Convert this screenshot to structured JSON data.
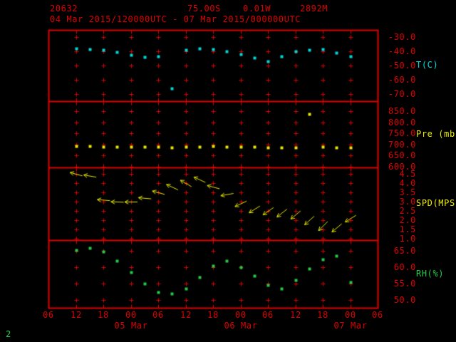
{
  "header": {
    "station_id": "20632",
    "latitude": "75.00S",
    "longitude": "0.01W",
    "elevation": "2892M",
    "time_range": "04 Mar 2015/120000UTC - 07 Mar 2015/000000UTC"
  },
  "footer": {
    "page_number": "2"
  },
  "colors": {
    "frame": "#dd0000",
    "axis_text": "#dd0000",
    "temperature": "#00d8d8",
    "pressure": "#e8e800",
    "wind": "#e8e800",
    "humidity": "#22cc44"
  },
  "chart_data": {
    "type": "meteogram",
    "title": "Station time-series meteogram",
    "time_axis": {
      "hour_labels": [
        "06",
        "12",
        "18",
        "00",
        "06",
        "12",
        "18",
        "00",
        "06",
        "12",
        "18",
        "00",
        "06"
      ],
      "tick_interval_hours": 6,
      "date_labels": [
        "05 Mar",
        "06 Mar",
        "07 Mar"
      ],
      "date_label_hours": [
        18,
        42,
        66
      ],
      "x_hours": [
        6,
        9,
        12,
        15,
        18,
        21,
        24,
        27,
        30,
        33,
        36,
        39,
        42,
        45,
        48,
        51,
        54,
        57,
        60,
        63,
        66
      ]
    },
    "panels": [
      {
        "type": "scatter",
        "label": "T(C)",
        "color": "#00d8d8",
        "yticks": [
          -30,
          -40,
          -50,
          -60,
          -70
        ],
        "ylim": [
          -75,
          -25
        ],
        "values": [
          -38,
          -38.5,
          -39,
          -40.5,
          -42.5,
          -44,
          -43.5,
          -66,
          -39,
          -38,
          -38.5,
          -40,
          -42,
          -44.5,
          -47,
          -43.5,
          -40,
          -39,
          -38.5,
          -41,
          -43.5
        ]
      },
      {
        "type": "scatter",
        "label": "Pre (mb)",
        "color": "#e8e800",
        "yticks": [
          850,
          800,
          750,
          700,
          650,
          600
        ],
        "ylim": [
          595,
          895
        ],
        "values": [
          692,
          691,
          690,
          690,
          689,
          688,
          688,
          687,
          689,
          690,
          691,
          690,
          689,
          688,
          687,
          686,
          687,
          838,
          688,
          687,
          686
        ]
      },
      {
        "type": "wind-arrow",
        "label": "SPD(MPS)",
        "color": "#e8e800",
        "yticks": [
          4.5,
          4.0,
          3.5,
          3.0,
          2.5,
          2.0,
          1.5,
          1.0
        ],
        "ylim": [
          0.9,
          4.9
        ],
        "values": [
          4.5,
          4.4,
          3.1,
          3.0,
          3.0,
          3.2,
          3.5,
          3.8,
          4.0,
          4.2,
          3.8,
          3.4,
          2.9,
          2.6,
          2.5,
          2.4,
          2.3,
          2.0,
          1.7,
          1.6,
          2.1
        ],
        "dirs_deg": [
          195,
          190,
          185,
          182,
          180,
          185,
          195,
          205,
          210,
          205,
          195,
          170,
          155,
          148,
          145,
          142,
          140,
          138,
          135,
          140,
          148
        ]
      },
      {
        "type": "scatter",
        "label": "RH(%)",
        "color": "#22cc44",
        "yticks": [
          65,
          60,
          55,
          50
        ],
        "ylim": [
          47.5,
          68.5
        ],
        "values": [
          65.2,
          65.8,
          64.8,
          62,
          58.5,
          55,
          52.5,
          52,
          53.5,
          57,
          60.5,
          62,
          60,
          57.5,
          54.5,
          53.5,
          56,
          59.5,
          62.5,
          63.5,
          55.5
        ]
      }
    ]
  }
}
